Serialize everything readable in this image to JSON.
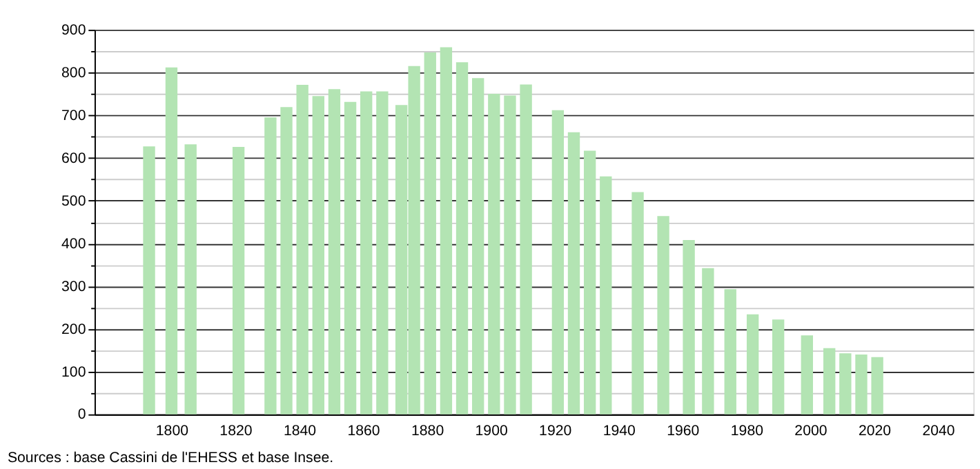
{
  "chart_data": {
    "type": "bar",
    "x": [
      1793,
      1800,
      1806,
      1821,
      1831,
      1836,
      1841,
      1846,
      1851,
      1856,
      1861,
      1866,
      1872,
      1876,
      1881,
      1886,
      1891,
      1896,
      1901,
      1906,
      1911,
      1921,
      1926,
      1931,
      1936,
      1946,
      1954,
      1962,
      1968,
      1975,
      1982,
      1990,
      1999,
      2006,
      2011,
      2016,
      2021
    ],
    "values": [
      627,
      812,
      632,
      626,
      695,
      719,
      771,
      745,
      761,
      731,
      756,
      756,
      724,
      815,
      847,
      859,
      824,
      787,
      750,
      746,
      772,
      712,
      660,
      617,
      557,
      520,
      464,
      408,
      342,
      293,
      234,
      222,
      185,
      155,
      143,
      140,
      134
    ],
    "color": "#b3e4b3",
    "xlim": [
      1778,
      2049
    ],
    "xticks": [
      1800,
      1820,
      1840,
      1860,
      1880,
      1900,
      1920,
      1940,
      1960,
      1980,
      2000,
      2020,
      2040
    ],
    "ylim": [
      0,
      900
    ],
    "yticks": [
      0,
      {
        "value": 50,
        "label": null
      },
      100,
      {
        "value": 150,
        "label": null
      },
      200,
      {
        "value": 250,
        "label": null
      },
      300,
      {
        "value": 350,
        "label": null
      },
      400,
      {
        "value": 450,
        "label": null
      },
      500,
      {
        "value": 550,
        "label": null
      },
      600,
      {
        "value": 650,
        "label": null
      },
      700,
      {
        "value": 750,
        "label": null
      },
      800,
      {
        "value": 850,
        "label": null
      },
      900
    ],
    "grid": "y",
    "annotations": [
      "Sources : base Cassini de l'EHESS et base Insee."
    ]
  }
}
